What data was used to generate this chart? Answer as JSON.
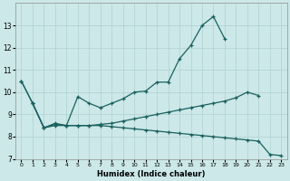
{
  "xlabel": "Humidex (Indice chaleur)",
  "background_color": "#cce8e8",
  "grid_color": "#b0d0d0",
  "line_color": "#1a6060",
  "ylim": [
    7,
    14
  ],
  "xlim": [
    -0.5,
    23.5
  ],
  "yticks": [
    7,
    8,
    9,
    10,
    11,
    12,
    13
  ],
  "xticks": [
    0,
    1,
    2,
    3,
    4,
    5,
    6,
    7,
    8,
    9,
    10,
    11,
    12,
    13,
    14,
    15,
    16,
    17,
    18,
    19,
    20,
    21,
    22,
    23
  ],
  "lineA_x": [
    0,
    1,
    2,
    3,
    4,
    5,
    6,
    7,
    8,
    9,
    10,
    11,
    12,
    13,
    14,
    15,
    16,
    17,
    18
  ],
  "lineA_y": [
    10.5,
    9.5,
    8.4,
    8.5,
    8.5,
    9.8,
    9.5,
    9.3,
    9.5,
    9.7,
    10.0,
    10.05,
    10.45,
    10.45,
    11.5,
    12.1,
    13.0,
    13.4,
    12.4
  ],
  "lineB_x": [
    0,
    1,
    2,
    3,
    4,
    5,
    6,
    7,
    8,
    9,
    10,
    11,
    12,
    13,
    14,
    15,
    16,
    17,
    18,
    19,
    20,
    21
  ],
  "lineB_y": [
    10.5,
    9.5,
    8.4,
    8.6,
    8.5,
    8.5,
    8.5,
    8.55,
    8.6,
    8.7,
    8.8,
    8.9,
    9.0,
    9.1,
    9.2,
    9.3,
    9.4,
    9.5,
    9.6,
    9.75,
    10.0,
    9.85
  ],
  "lineC_x": [
    1,
    2,
    3,
    4,
    5,
    6,
    7,
    8,
    9,
    10,
    11,
    12,
    13,
    14,
    15,
    16,
    17,
    18,
    19,
    20,
    21,
    22,
    23
  ],
  "lineC_y": [
    9.5,
    8.4,
    8.55,
    8.5,
    8.5,
    8.5,
    8.5,
    8.45,
    8.4,
    8.35,
    8.3,
    8.25,
    8.2,
    8.15,
    8.1,
    8.05,
    8.0,
    7.95,
    7.9,
    7.85,
    7.8,
    7.2,
    7.15
  ]
}
